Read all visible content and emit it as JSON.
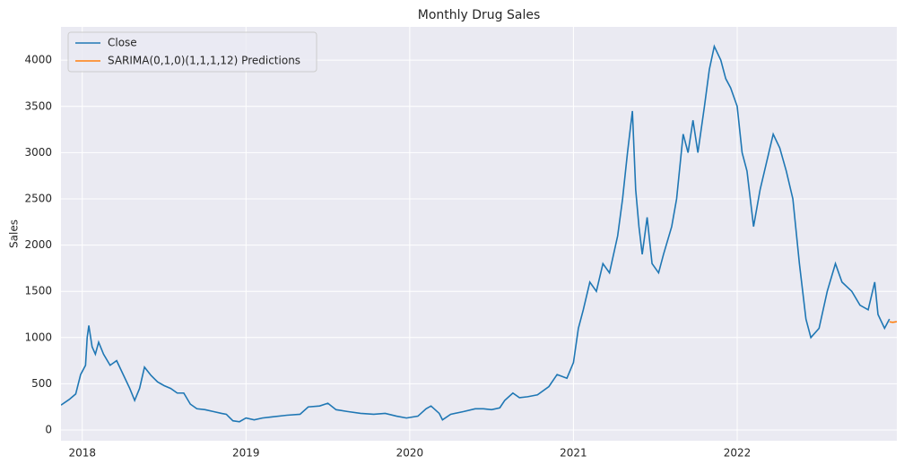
{
  "chart_data": {
    "type": "line",
    "title": "Monthly Drug Sales",
    "y_label": "Sales",
    "xlim": [
      2017.87,
      2022.975
    ],
    "xticks": [
      2018,
      2019,
      2020,
      2021,
      2022
    ],
    "ylim": [
      -116,
      4360
    ],
    "yticks": [
      0,
      500,
      1000,
      1500,
      2000,
      2500,
      3000,
      3500,
      4000
    ],
    "grid": true,
    "legend": "upper left",
    "series": [
      {
        "name": "Close",
        "color": "#1f77b4",
        "x": [
          2017.87,
          2017.92,
          2017.96,
          2017.99,
          2018.02,
          2018.03,
          2018.04,
          2018.06,
          2018.08,
          2018.1,
          2018.13,
          2018.17,
          2018.21,
          2018.25,
          2018.29,
          2018.32,
          2018.35,
          2018.38,
          2018.42,
          2018.46,
          2018.5,
          2018.54,
          2018.58,
          2018.62,
          2018.66,
          2018.7,
          2018.75,
          2018.8,
          2018.85,
          2018.88,
          2018.92,
          2018.96,
          2019.0,
          2019.05,
          2019.1,
          2019.15,
          2019.25,
          2019.33,
          2019.38,
          2019.45,
          2019.5,
          2019.55,
          2019.62,
          2019.7,
          2019.78,
          2019.85,
          2019.92,
          2019.98,
          2020.05,
          2020.1,
          2020.13,
          2020.18,
          2020.2,
          2020.25,
          2020.33,
          2020.4,
          2020.45,
          2020.5,
          2020.55,
          2020.58,
          2020.63,
          2020.67,
          2020.72,
          2020.78,
          2020.85,
          2020.9,
          2020.96,
          2021.0,
          2021.03,
          2021.06,
          2021.1,
          2021.14,
          2021.18,
          2021.22,
          2021.27,
          2021.3,
          2021.33,
          2021.36,
          2021.38,
          2021.4,
          2021.42,
          2021.45,
          2021.48,
          2021.52,
          2021.55,
          2021.6,
          2021.63,
          2021.67,
          2021.7,
          2021.73,
          2021.76,
          2021.8,
          2021.83,
          2021.86,
          2021.9,
          2021.93,
          2021.96,
          2022.0,
          2022.03,
          2022.06,
          2022.1,
          2022.14,
          2022.18,
          2022.22,
          2022.26,
          2022.3,
          2022.34,
          2022.38,
          2022.42,
          2022.45,
          2022.5,
          2022.55,
          2022.6,
          2022.64,
          2022.7,
          2022.75,
          2022.8,
          2022.84,
          2022.86,
          2022.9,
          2022.93
        ],
        "values": [
          270,
          330,
          390,
          600,
          700,
          1000,
          1130,
          900,
          820,
          950,
          820,
          700,
          750,
          600,
          450,
          320,
          450,
          680,
          590,
          520,
          480,
          450,
          400,
          400,
          280,
          230,
          220,
          200,
          180,
          170,
          100,
          90,
          130,
          110,
          130,
          140,
          160,
          170,
          250,
          260,
          290,
          220,
          200,
          180,
          170,
          180,
          150,
          130,
          150,
          230,
          260,
          180,
          110,
          170,
          200,
          230,
          230,
          220,
          240,
          320,
          400,
          350,
          360,
          380,
          470,
          600,
          560,
          730,
          1100,
          1300,
          1600,
          1500,
          1800,
          1700,
          2100,
          2500,
          3000,
          3450,
          2600,
          2200,
          1900,
          2300,
          1800,
          1700,
          1900,
          2200,
          2500,
          3200,
          3000,
          3350,
          3000,
          3500,
          3900,
          4150,
          4000,
          3800,
          3700,
          3500,
          3000,
          2800,
          2200,
          2600,
          2900,
          3200,
          3050,
          2800,
          2500,
          1800,
          1200,
          1000,
          1100,
          1500,
          1800,
          1600,
          1500,
          1350,
          1300,
          1600,
          1250,
          1100,
          1200
        ]
      },
      {
        "name": "SARIMA(0,1,0)(1,1,1,12) Predictions",
        "color": "#ff7f0e",
        "x": [
          2022.93,
          2022.95,
          2022.975
        ],
        "values": [
          1170,
          1165,
          1172
        ]
      }
    ]
  }
}
